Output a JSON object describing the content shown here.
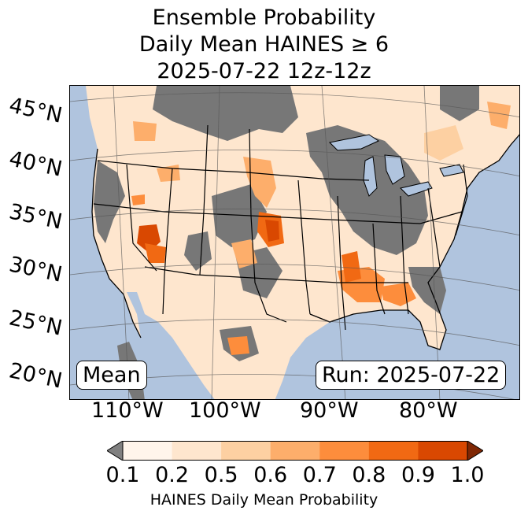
{
  "title": {
    "line1": "Ensemble Probability",
    "line2": "Daily Mean HAINES ≥ 6",
    "line3": "2025-07-22 12z-12z"
  },
  "lat_labels": [
    "45°N",
    "40°N",
    "35°N",
    "30°N",
    "25°N",
    "20°N"
  ],
  "lon_labels": [
    "110°W",
    "100°W",
    "90°W",
    "80°W"
  ],
  "mean_label": "Mean",
  "run_label": "Run: 2025-07-22",
  "colorbar": {
    "ticks": [
      "0.1",
      "0.2",
      "0.5",
      "0.6",
      "0.7",
      "0.8",
      "0.9",
      "1.0"
    ],
    "label": "HAINES Daily Mean Probability",
    "colors": [
      "#fff5eb",
      "#fee6ce",
      "#fdd0a2",
      "#fdae6b",
      "#fd8d3c",
      "#f16913",
      "#d94801",
      "#a63603"
    ],
    "under_color": "#808080",
    "over_color": "#7f2704"
  },
  "map_colors": {
    "ocean": "#b0c4de",
    "land_gray": "#777777",
    "state_lines": "#000000",
    "grid": "#555555"
  }
}
